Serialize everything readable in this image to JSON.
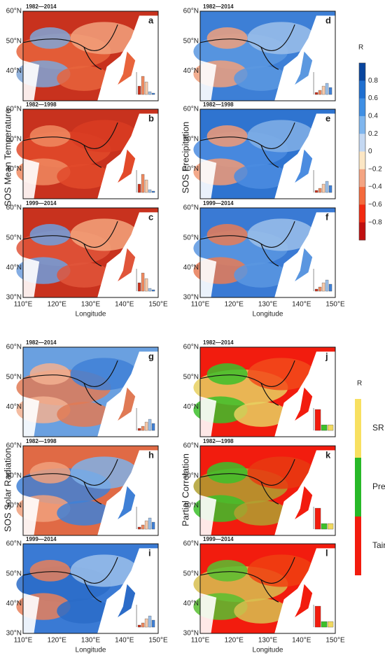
{
  "panels": [
    {
      "letter": "a",
      "period": "1982—2014"
    },
    {
      "letter": "b",
      "period": "1982—1998"
    },
    {
      "letter": "c",
      "period": "1999—2014"
    },
    {
      "letter": "d",
      "period": "1982—2014"
    },
    {
      "letter": "e",
      "period": "1982—1998"
    },
    {
      "letter": "f",
      "period": "1999—2014"
    },
    {
      "letter": "g",
      "period": "1982—2014"
    },
    {
      "letter": "h",
      "period": "1982—1998"
    },
    {
      "letter": "i",
      "period": "1999—2014"
    },
    {
      "letter": "j",
      "period": "1982—2014"
    },
    {
      "letter": "k",
      "period": "1982—1998"
    },
    {
      "letter": "l",
      "period": "1999—2014"
    }
  ],
  "latitude_labels": [
    "60°N",
    "50°N",
    "40°N",
    "30°N"
  ],
  "longitude_labels": [
    "110°E",
    "120°E",
    "130°E",
    "140°E",
    "150°E"
  ],
  "axis_label": "Longitude",
  "row_labels": [
    "SOS Mean Temperature",
    "SOS  Precipitation",
    "SOS  Solar Radiation",
    "Partial Correlation"
  ],
  "colorbar": {
    "title": "R",
    "ticks": [
      "0.8",
      "0.6",
      "0.4",
      "0.2",
      "0",
      "−0.2",
      "−0.4",
      "−0.6",
      "−0.8"
    ]
  },
  "legend": {
    "title": "R",
    "items": [
      "SR",
      "Prec",
      "Tair"
    ]
  }
}
